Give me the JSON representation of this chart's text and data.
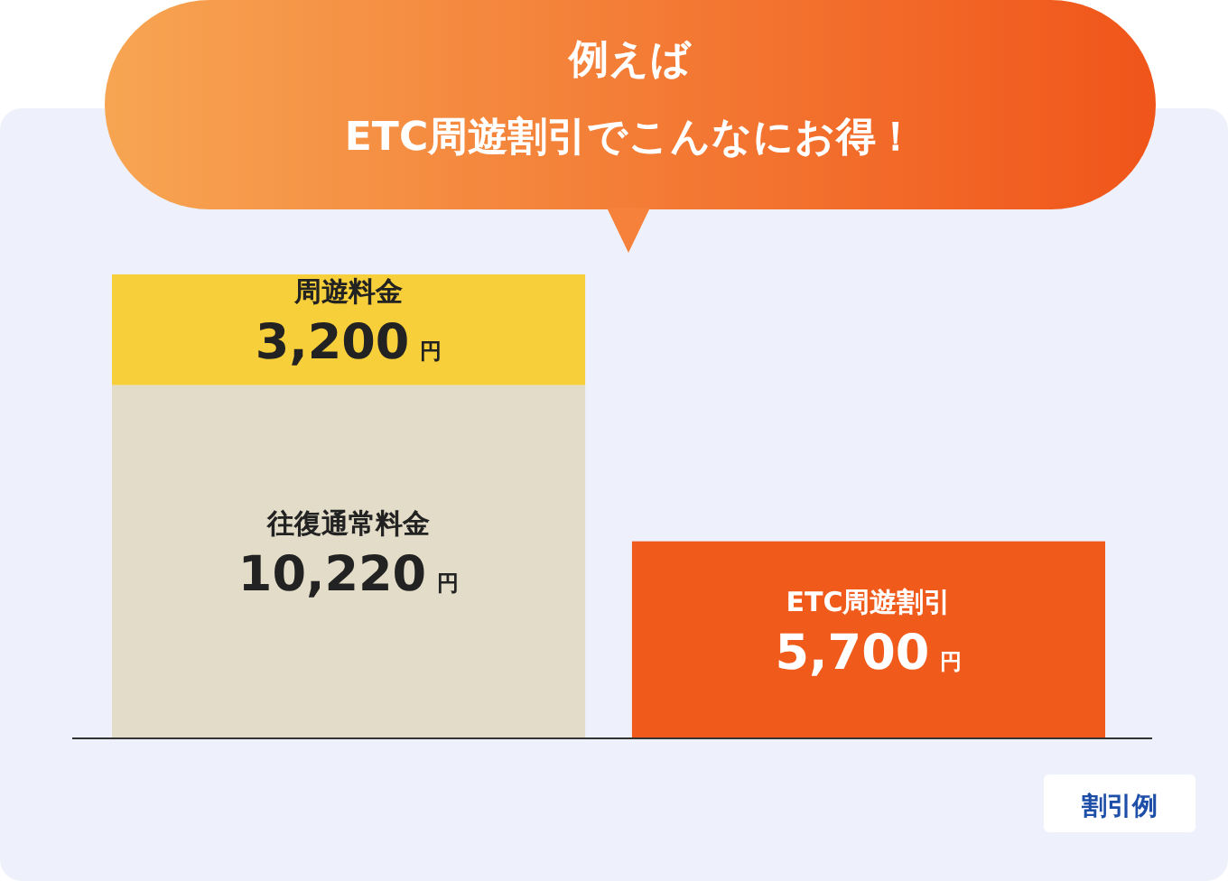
{
  "chart_data": {
    "type": "bar",
    "title": "例えば",
    "subtitle": "ETC周遊割引でこんなにお得！",
    "categories": [
      null,
      null
    ],
    "stacked": true,
    "data_labels": false,
    "legend": false,
    "series": [
      {
        "name": "往復通常料金",
        "color": "#e2dcc8",
        "values": [
          10220,
          null
        ],
        "value_labels": [
          "10,220 円",
          null
        ]
      },
      {
        "name": "周遊料金",
        "color": "#f7cf3a",
        "values": [
          3200,
          null
        ],
        "value_labels": [
          "3,200 円",
          null
        ]
      },
      {
        "name": "ETC周遊割引",
        "color": "#f05a1a",
        "values": [
          null,
          5700
        ],
        "value_labels": [
          null,
          "5,700 円"
        ]
      }
    ],
    "annotations": [
      "割引例"
    ]
  }
}
